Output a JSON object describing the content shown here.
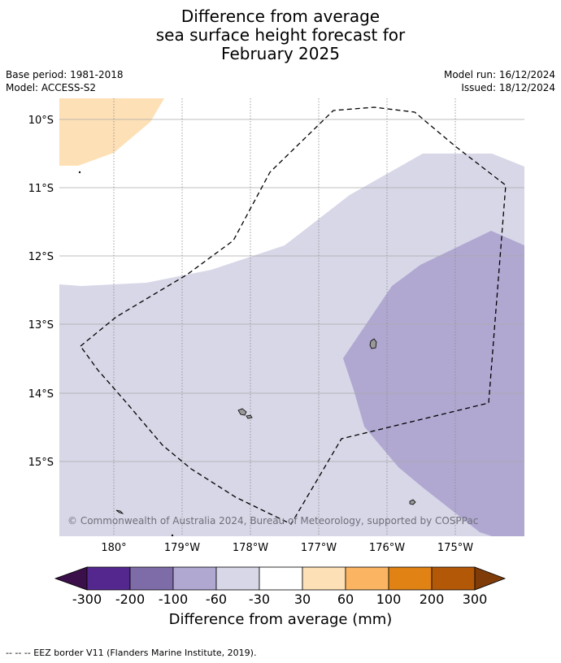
{
  "title": {
    "line1": "Difference from average",
    "line2": "sea surface height forecast for",
    "line3": "February 2025"
  },
  "meta": {
    "base_period": "Base period: 1981-2018",
    "model": "Model: ACCESS-S2",
    "model_run": "Model run: 16/12/2024",
    "issued": "Issued: 18/12/2024"
  },
  "map": {
    "extent": {
      "lon_min": -180.8,
      "lon_max": -174.0,
      "lat_min": -16.1,
      "lat_max": -9.7
    },
    "lat_ticks": [
      {
        "value": -10,
        "label": "10°S"
      },
      {
        "value": -11,
        "label": "11°S"
      },
      {
        "value": -12,
        "label": "12°S"
      },
      {
        "value": -13,
        "label": "13°S"
      },
      {
        "value": -14,
        "label": "14°S"
      },
      {
        "value": -15,
        "label": "15°S"
      }
    ],
    "lon_ticks": [
      {
        "value": -180,
        "label": "180°"
      },
      {
        "value": -179,
        "label": "179°W"
      },
      {
        "value": -178,
        "label": "178°W"
      },
      {
        "value": -177,
        "label": "177°W"
      },
      {
        "value": -176,
        "label": "176°W"
      },
      {
        "value": -175,
        "label": "175°W"
      }
    ],
    "copyright": "© Commonwealth of Australia 2024, Bureau of Meteorology, supported by COSPPac",
    "colors": {
      "land": "#999999",
      "grid_lat": "#aaaaaa",
      "grid_lon": "#888888",
      "eez_border": "#000000"
    }
  },
  "colorbar": {
    "label": "Difference from average (mm)",
    "tick_labels": [
      "-300",
      "-200",
      "-100",
      "-60",
      "-30",
      "30",
      "60",
      "100",
      "200",
      "300"
    ],
    "colors": {
      "below_min": "#3b0f4a",
      "bins": [
        "#54278f",
        "#7e6ca8",
        "#b0a8d1",
        "#d7d7e8",
        "#ffffff",
        "#fde0b6",
        "#fbb562",
        "#e08214",
        "#b35806"
      ],
      "above_max": "#7f3b08"
    }
  },
  "footer": {
    "eez_legend": "--  --  -- EEZ border V11 (Flanders Marine Institute, 2019)."
  }
}
